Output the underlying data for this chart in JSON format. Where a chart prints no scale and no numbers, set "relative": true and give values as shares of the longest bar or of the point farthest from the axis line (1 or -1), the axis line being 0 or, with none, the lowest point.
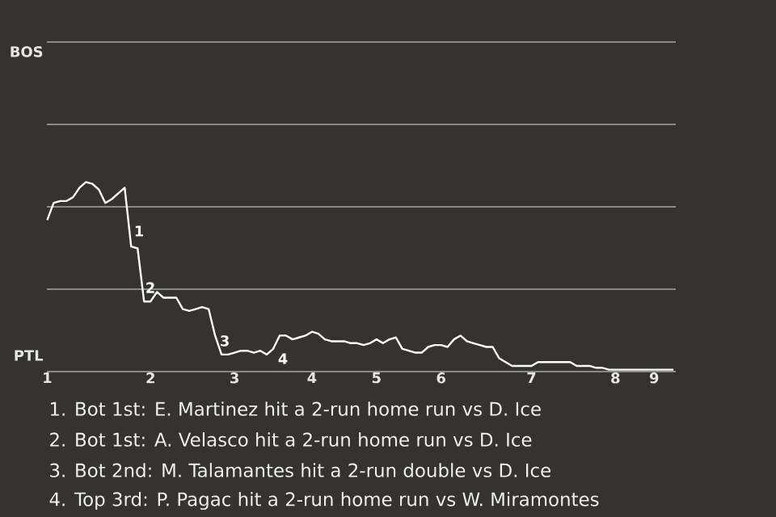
{
  "chart_data": {
    "type": "line",
    "color": "#ffffff",
    "relative": true,
    "ref_lines": [
      {
        "axis": "y",
        "value": 0.435,
        "color": "#8a8a8a"
      },
      {
        "axis": "y",
        "value": 0.87,
        "color": "#8a8a8a"
      },
      {
        "axis": "y",
        "value": 1.304,
        "color": "#8a8a8a"
      },
      {
        "axis": "y",
        "value": 1.739,
        "color": "#8a8a8a"
      }
    ],
    "categories": [
      "1",
      null,
      null,
      null,
      null,
      null,
      null,
      null,
      null,
      null,
      null,
      null,
      null,
      null,
      null,
      null,
      "2",
      null,
      null,
      null,
      null,
      null,
      null,
      null,
      null,
      null,
      null,
      null,
      null,
      "3",
      null,
      null,
      null,
      null,
      null,
      null,
      null,
      null,
      null,
      null,
      null,
      "4",
      null,
      null,
      null,
      null,
      null,
      null,
      null,
      null,
      null,
      "5",
      null,
      null,
      null,
      null,
      null,
      null,
      null,
      null,
      null,
      "6",
      null,
      null,
      null,
      null,
      null,
      null,
      null,
      null,
      null,
      null,
      null,
      null,
      null,
      "7",
      null,
      null,
      null,
      null,
      null,
      null,
      null,
      null,
      null,
      null,
      null,
      null,
      "8",
      null,
      null,
      null,
      null,
      null,
      "9",
      null,
      null,
      null
    ],
    "values": [
      0.8,
      0.89,
      0.9,
      0.9,
      0.92,
      0.97,
      1,
      0.99,
      0.96,
      0.89,
      0.91,
      0.94,
      0.97,
      0.66,
      0.65,
      0.37,
      0.37,
      0.42,
      0.39,
      0.39,
      0.39,
      0.33,
      0.32,
      0.33,
      0.34,
      0.33,
      0.19,
      0.09,
      0.09,
      0.1,
      0.11,
      0.11,
      0.1,
      0.11,
      0.09,
      0.12,
      0.19,
      0.19,
      0.17,
      0.18,
      0.19,
      0.21,
      0.2,
      0.17,
      0.16,
      0.16,
      0.16,
      0.15,
      0.15,
      0.14,
      0.15,
      0.17,
      0.15,
      0.17,
      0.18,
      0.12,
      0.11,
      0.1,
      0.1,
      0.13,
      0.14,
      0.14,
      0.13,
      0.17,
      0.19,
      0.16,
      0.15,
      0.14,
      0.13,
      0.13,
      0.07,
      0.05,
      0.03,
      0.03,
      0.03,
      0.03,
      0.05,
      0.05,
      0.05,
      0.05,
      0.05,
      0.05,
      0.03,
      0.03,
      0.03,
      0.02,
      0.02,
      0.01,
      0.01,
      0.01,
      0.01,
      0.01,
      0.01,
      0.01,
      0.01,
      0.01,
      0.01,
      0.01
    ],
    "annotations": [
      "1",
      "2",
      "3",
      "4",
      "BOS",
      "PTL",
      "1. Bot 1st: E. Martinez hit a 2-run home run vs D. Ice",
      "2. Bot 1st: A. Velasco hit a 2-run home run vs D. Ice",
      "3. Bot 2nd: M. Talamantes hit a 2-run double vs D. Ice",
      "4. Top 3rd: P. Pagac hit a 2-run home run vs W. Miramontes"
    ]
  }
}
